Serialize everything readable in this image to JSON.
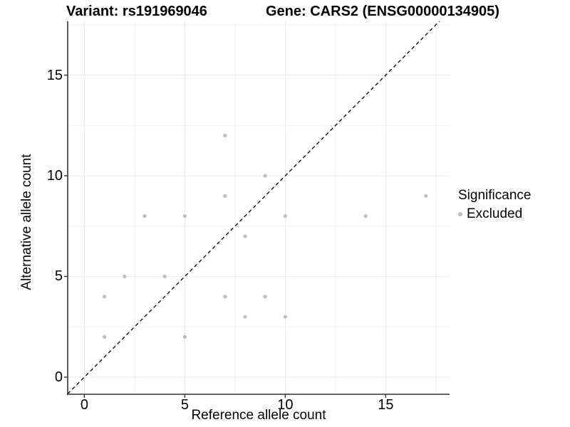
{
  "titles": {
    "variant": "Variant: rs191969046",
    "gene": "Gene: CARS2 (ENSG00000134905)"
  },
  "legend": {
    "title": "Significance",
    "items": [
      {
        "label": "Excluded",
        "color": "#bebebe"
      }
    ]
  },
  "chart_data": {
    "type": "scatter",
    "title": "",
    "xlabel": "Reference allele count",
    "ylabel": "Alternative allele count",
    "xlim": [
      -0.83,
      18.18
    ],
    "ylim": [
      -0.85,
      17.67
    ],
    "x_ticks": [
      0,
      5,
      10,
      15
    ],
    "y_ticks": [
      0,
      5,
      10,
      15
    ],
    "x_minor_gridlines": [
      2.5,
      7.5,
      12.5,
      17.5
    ],
    "y_minor_gridlines": [
      2.5,
      7.5,
      12.5,
      17.5
    ],
    "grid": true,
    "legend_position": "right",
    "series": [
      {
        "name": "Excluded",
        "color": "#bebebe",
        "points": [
          [
            1,
            2
          ],
          [
            1,
            4
          ],
          [
            2,
            5
          ],
          [
            3,
            8
          ],
          [
            4,
            5
          ],
          [
            5,
            2
          ],
          [
            5,
            8
          ],
          [
            7,
            4
          ],
          [
            7,
            9
          ],
          [
            7,
            12
          ],
          [
            8,
            3
          ],
          [
            8,
            7
          ],
          [
            9,
            4
          ],
          [
            9,
            10
          ],
          [
            10,
            3
          ],
          [
            10,
            8
          ],
          [
            14,
            8
          ],
          [
            17,
            9
          ]
        ]
      }
    ],
    "reference_line": {
      "kind": "identity",
      "style": "dashed",
      "color": "#000000"
    }
  },
  "colors": {
    "point": "#bebebe",
    "grid_major": "#e8e8e8",
    "grid_minor": "#f2f2f2",
    "axis_line": "#333333",
    "text": "#000000",
    "background": "#ffffff"
  }
}
